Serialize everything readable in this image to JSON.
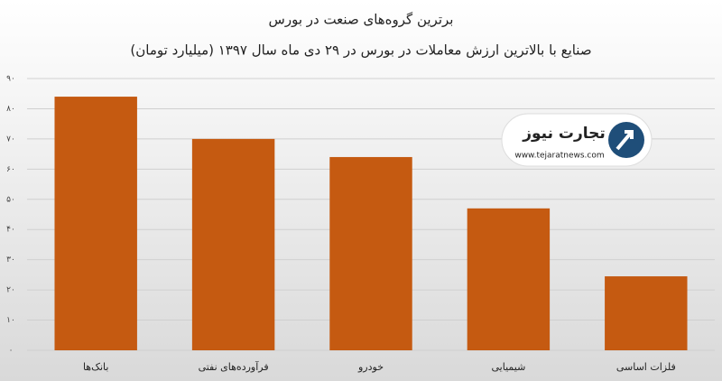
{
  "chart_data": {
    "type": "bar",
    "title": "برترین گروه‌های صنعت در بورس",
    "subtitle": "صنایع با بالاترین ارزش  معاملات در بورس در ۲۹ دی ماه سال ۱۳۹۷ (میلیارد تومان)",
    "categories": [
      "بانک‌ها",
      "فرآورده‌های نفتی",
      "خودرو",
      "شیمیایی",
      "فلزات اساسی"
    ],
    "values": [
      84,
      70,
      64,
      47,
      24.5
    ],
    "color": "#c55a11",
    "ylim": [
      0,
      90
    ],
    "yticks": [
      {
        "value": 0,
        "label": "۰"
      },
      {
        "value": 10,
        "label": "۱۰"
      },
      {
        "value": 20,
        "label": "۲۰"
      },
      {
        "value": 30,
        "label": "۳۰"
      },
      {
        "value": 40,
        "label": "۴۰"
      },
      {
        "value": 50,
        "label": "۵۰"
      },
      {
        "value": 60,
        "label": "۶۰"
      },
      {
        "value": 70,
        "label": "۷۰"
      },
      {
        "value": 80,
        "label": "۸۰"
      },
      {
        "value": 90,
        "label": "۹۰"
      }
    ],
    "grid": true,
    "logo": {
      "name": "تجارت نیوز",
      "url": "www.tejaratnews.com"
    }
  }
}
